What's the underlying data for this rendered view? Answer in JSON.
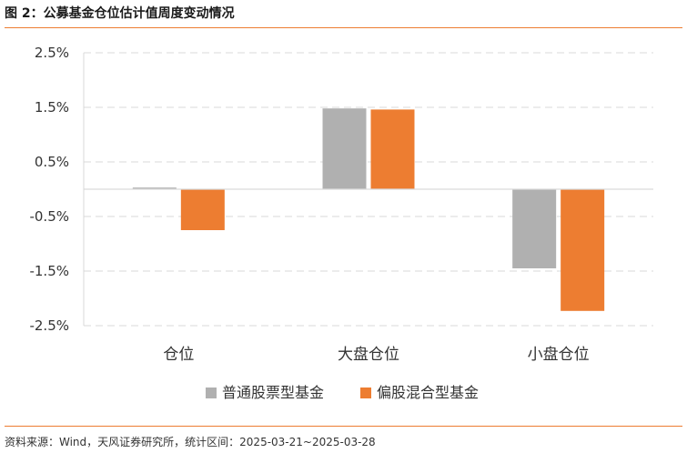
{
  "figure": {
    "title": "图 2：公募基金仓位估计值周度变动情况",
    "source": "资料来源：Wind，天风证券研究所，统计区间：2025-03-21~2025-03-28"
  },
  "chart_data": {
    "type": "bar",
    "categories": [
      "仓位",
      "大盘仓位",
      "小盘仓位"
    ],
    "series": [
      {
        "name": "普通股票型基金",
        "color": "#b0b0b0",
        "values": [
          0.03,
          1.48,
          -1.45
        ]
      },
      {
        "name": "偏股混合型基金",
        "color": "#ed7d31",
        "values": [
          -0.75,
          1.46,
          -2.23
        ]
      }
    ],
    "y_ticks": [
      "2.5%",
      "1.5%",
      "0.5%",
      "-0.5%",
      "-1.5%",
      "-2.5%"
    ],
    "y_tick_values": [
      2.5,
      1.5,
      0.5,
      -0.5,
      -1.5,
      -2.5
    ],
    "ylim": [
      -2.5,
      2.5
    ],
    "grid": true,
    "legend_position": "bottom-center"
  }
}
